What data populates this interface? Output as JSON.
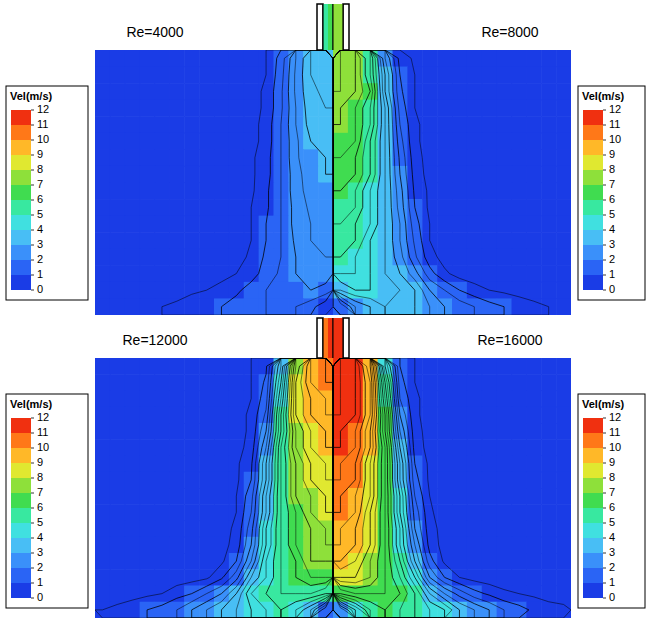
{
  "chart_data": [
    {
      "type": "heatmap",
      "title": "Re=4000",
      "colorbar": {
        "label": "Vel(m/s)",
        "range": [
          0,
          12
        ],
        "ticks": [
          0,
          1,
          2,
          3,
          4,
          5,
          6,
          7,
          8,
          9,
          10,
          11,
          12
        ]
      },
      "nozzle": [
        5,
        6
      ],
      "cells": [
        [
          0.1,
          0.1,
          0.1,
          0.1,
          0.1,
          0.1,
          0.1,
          0.1,
          0.1,
          0.2,
          0.3,
          0.5,
          1.2,
          2.5,
          3.5,
          3.8
        ],
        [
          0.1,
          0.1,
          0.1,
          0.1,
          0.1,
          0.1,
          0.1,
          0.1,
          0.1,
          0.2,
          0.3,
          0.5,
          1.3,
          2.6,
          3.5,
          3.8
        ],
        [
          0.1,
          0.1,
          0.1,
          0.1,
          0.1,
          0.1,
          0.1,
          0.1,
          0.1,
          0.2,
          0.3,
          0.6,
          1.4,
          2.6,
          3.4,
          3.6
        ],
        [
          0.1,
          0.1,
          0.1,
          0.1,
          0.1,
          0.1,
          0.1,
          0.1,
          0.1,
          0.2,
          0.3,
          0.6,
          1.4,
          2.5,
          3.3,
          3.5
        ],
        [
          0.1,
          0.1,
          0.1,
          0.1,
          0.1,
          0.1,
          0.1,
          0.1,
          0.1,
          0.2,
          0.3,
          0.7,
          1.5,
          2.5,
          3.2,
          3.3
        ],
        [
          0.1,
          0.1,
          0.1,
          0.1,
          0.1,
          0.1,
          0.1,
          0.1,
          0.1,
          0.2,
          0.3,
          0.7,
          1.5,
          2.4,
          3,
          3.2
        ],
        [
          0.1,
          0.1,
          0.1,
          0.1,
          0.1,
          0.1,
          0.1,
          0.1,
          0.1,
          0.2,
          0.4,
          0.8,
          1.5,
          2.4,
          2.9,
          3
        ],
        [
          0.1,
          0.1,
          0.1,
          0.1,
          0.1,
          0.1,
          0.1,
          0.1,
          0.1,
          0.2,
          0.4,
          0.8,
          1.5,
          2.3,
          2.8,
          3
        ],
        [
          0.1,
          0.1,
          0.1,
          0.1,
          0.1,
          0.1,
          0.1,
          0.1,
          0.1,
          0.2,
          0.4,
          0.9,
          1.5,
          2.3,
          2.7,
          2.9
        ],
        [
          0.1,
          0.1,
          0.1,
          0.1,
          0.1,
          0.1,
          0.1,
          0.1,
          0.1,
          0.2,
          0.5,
          0.9,
          1.5,
          2.2,
          2.6,
          2.8
        ],
        [
          0.1,
          0.1,
          0.1,
          0.1,
          0.1,
          0.1,
          0.1,
          0.1,
          0.1,
          0.2,
          0.5,
          1,
          1.5,
          2.2,
          2.5,
          2.7
        ],
        [
          0.1,
          0.1,
          0.1,
          0.1,
          0.1,
          0.1,
          0.1,
          0.1,
          0.1,
          0.3,
          0.5,
          1,
          1.5,
          2.1,
          2.5,
          2.6
        ],
        [
          0.1,
          0.1,
          0.1,
          0.1,
          0.1,
          0.1,
          0.1,
          0.1,
          0.2,
          0.3,
          0.6,
          1.1,
          1.5,
          2,
          2.4,
          2.5
        ],
        [
          0.1,
          0.1,
          0.1,
          0.1,
          0.1,
          0.1,
          0.1,
          0.2,
          0.3,
          0.5,
          0.8,
          1.2,
          1.6,
          2,
          2.2,
          2.3
        ],
        [
          0.2,
          0.2,
          0.2,
          0.2,
          0.3,
          0.3,
          0.4,
          0.5,
          0.7,
          0.9,
          1.2,
          1.5,
          1.7,
          1.9,
          2,
          1.8
        ],
        [
          0.2,
          0.3,
          0.3,
          0.4,
          0.5,
          0.6,
          0.8,
          0.9,
          1,
          1.2,
          1.4,
          1.5,
          1.6,
          1.5,
          1.2,
          0.6
        ]
      ]
    },
    {
      "type": "heatmap",
      "title": "Re=8000",
      "colorbar": {
        "label": "Vel(m/s)",
        "range": [
          0,
          12
        ],
        "ticks": [
          0,
          1,
          2,
          3,
          4,
          5,
          6,
          7,
          8,
          9,
          10,
          11,
          12
        ]
      },
      "nozzle": [
        7.5,
        7
      ],
      "cells": [
        [
          7.5,
          7,
          5.5,
          2.5,
          0.8,
          0.4,
          0.3,
          0.2,
          0.1,
          0.1,
          0.1,
          0.1,
          0.1,
          0.1,
          0.1,
          0.1
        ],
        [
          7.5,
          7,
          5.5,
          3,
          1,
          0.5,
          0.3,
          0.2,
          0.1,
          0.1,
          0.1,
          0.1,
          0.1,
          0.1,
          0.1,
          0.1
        ],
        [
          7.5,
          7,
          6,
          3,
          1.1,
          0.5,
          0.3,
          0.2,
          0.1,
          0.1,
          0.1,
          0.1,
          0.1,
          0.1,
          0.1,
          0.1
        ],
        [
          7,
          6.5,
          5.5,
          3.5,
          1.3,
          0.5,
          0.3,
          0.2,
          0.1,
          0.1,
          0.1,
          0.1,
          0.1,
          0.1,
          0.1,
          0.1
        ],
        [
          7,
          6.5,
          5.5,
          3.5,
          1.5,
          0.6,
          0.3,
          0.2,
          0.1,
          0.1,
          0.1,
          0.1,
          0.1,
          0.1,
          0.1,
          0.1
        ],
        [
          6.5,
          6.5,
          5,
          3.5,
          1.7,
          0.6,
          0.3,
          0.2,
          0.1,
          0.1,
          0.1,
          0.1,
          0.1,
          0.1,
          0.1,
          0.1
        ],
        [
          6.5,
          6,
          5,
          3.5,
          1.9,
          0.7,
          0.3,
          0.2,
          0.1,
          0.1,
          0.1,
          0.1,
          0.1,
          0.1,
          0.1,
          0.1
        ],
        [
          6,
          6,
          5,
          3.5,
          2,
          0.8,
          0.3,
          0.2,
          0.1,
          0.1,
          0.1,
          0.1,
          0.1,
          0.1,
          0.1,
          0.1
        ],
        [
          6,
          5.5,
          4.5,
          3.5,
          2.2,
          0.9,
          0.4,
          0.2,
          0.1,
          0.1,
          0.1,
          0.1,
          0.1,
          0.1,
          0.1,
          0.1
        ],
        [
          5.5,
          5.5,
          4.5,
          3.5,
          2.3,
          1,
          0.4,
          0.2,
          0.1,
          0.1,
          0.1,
          0.1,
          0.1,
          0.1,
          0.1,
          0.1
        ],
        [
          5.5,
          5,
          4.5,
          3.5,
          2.5,
          1.2,
          0.5,
          0.2,
          0.1,
          0.1,
          0.1,
          0.1,
          0.1,
          0.1,
          0.1,
          0.1
        ],
        [
          5,
          5,
          4,
          3.5,
          2.5,
          1.4,
          0.5,
          0.2,
          0.1,
          0.1,
          0.1,
          0.1,
          0.1,
          0.1,
          0.1,
          0.1
        ],
        [
          5,
          4.5,
          4,
          3.5,
          2.7,
          1.6,
          0.7,
          0.3,
          0.2,
          0.1,
          0.1,
          0.1,
          0.1,
          0.1,
          0.1,
          0.1
        ],
        [
          4.5,
          4.5,
          4,
          3.5,
          3,
          2.2,
          1.2,
          0.6,
          0.3,
          0.2,
          0.2,
          0.1,
          0.1,
          0.1,
          0.1,
          0.1
        ],
        [
          3.5,
          4,
          4,
          3.5,
          3.5,
          3,
          2,
          1.5,
          1,
          0.7,
          0.5,
          0.4,
          0.3,
          0.3,
          0.2,
          0.2
        ],
        [
          1,
          2.5,
          3,
          3.5,
          3,
          3,
          2.5,
          2,
          1.8,
          1.5,
          1.2,
          1,
          0.8,
          0.6,
          0.5,
          0.4
        ]
      ]
    },
    {
      "type": "heatmap",
      "title": "Re=12000",
      "colorbar": {
        "label": "Vel(m/s)",
        "range": [
          0,
          12
        ],
        "ticks": [
          0,
          1,
          2,
          3,
          4,
          5,
          6,
          7,
          8,
          9,
          10,
          11,
          12
        ]
      },
      "nozzle": [
        10,
        11.5
      ],
      "cells": [
        [
          0.1,
          0.1,
          0.1,
          0.1,
          0.1,
          0.1,
          0.1,
          0.1,
          0.2,
          0.3,
          0.5,
          0.9,
          3.5,
          7.5,
          9.5,
          10
        ],
        [
          0.1,
          0.1,
          0.1,
          0.1,
          0.1,
          0.1,
          0.1,
          0.1,
          0.2,
          0.3,
          0.5,
          1.1,
          4,
          8,
          9.5,
          10
        ],
        [
          0.1,
          0.1,
          0.1,
          0.1,
          0.1,
          0.1,
          0.1,
          0.1,
          0.2,
          0.3,
          0.5,
          1.3,
          4.5,
          8,
          9,
          9.5
        ],
        [
          0.1,
          0.1,
          0.1,
          0.1,
          0.1,
          0.1,
          0.1,
          0.1,
          0.2,
          0.3,
          0.6,
          1.6,
          5,
          8,
          9,
          9.5
        ],
        [
          0.1,
          0.1,
          0.1,
          0.1,
          0.1,
          0.1,
          0.1,
          0.1,
          0.2,
          0.3,
          0.6,
          2,
          5,
          7.5,
          8.5,
          9
        ],
        [
          0.1,
          0.1,
          0.1,
          0.1,
          0.1,
          0.1,
          0.1,
          0.1,
          0.2,
          0.3,
          0.7,
          2.5,
          5.5,
          7.5,
          8.5,
          9
        ],
        [
          0.1,
          0.1,
          0.1,
          0.1,
          0.1,
          0.1,
          0.1,
          0.1,
          0.2,
          0.4,
          0.9,
          3,
          5.5,
          7,
          8,
          8.5
        ],
        [
          0.1,
          0.1,
          0.1,
          0.1,
          0.1,
          0.1,
          0.1,
          0.1,
          0.2,
          0.4,
          1,
          3,
          5.5,
          7,
          8,
          8.5
        ],
        [
          0.1,
          0.1,
          0.1,
          0.1,
          0.1,
          0.1,
          0.1,
          0.1,
          0.2,
          0.5,
          1.3,
          3.5,
          5.5,
          7,
          7.5,
          8
        ],
        [
          0.1,
          0.1,
          0.1,
          0.1,
          0.1,
          0.1,
          0.1,
          0.1,
          0.2,
          0.5,
          1.5,
          3.5,
          5.5,
          6.5,
          7.5,
          8
        ],
        [
          0.1,
          0.1,
          0.1,
          0.1,
          0.1,
          0.1,
          0.1,
          0.1,
          0.3,
          0.6,
          1.8,
          4,
          5.5,
          6.5,
          7,
          7.5
        ],
        [
          0.1,
          0.1,
          0.1,
          0.1,
          0.1,
          0.1,
          0.1,
          0.2,
          0.3,
          0.7,
          2,
          4,
          5.5,
          6.5,
          7,
          7.5
        ],
        [
          0.1,
          0.1,
          0.1,
          0.1,
          0.1,
          0.1,
          0.2,
          0.2,
          0.4,
          1,
          2.5,
          4.5,
          5.5,
          6,
          7,
          7
        ],
        [
          0.1,
          0.1,
          0.1,
          0.1,
          0.2,
          0.2,
          0.3,
          0.4,
          0.9,
          1.8,
          3.5,
          4.5,
          5.5,
          6,
          6.5,
          6.5
        ],
        [
          0.2,
          0.3,
          0.3,
          0.4,
          0.5,
          0.8,
          1,
          1.5,
          2,
          3,
          4.5,
          5,
          5.5,
          5.5,
          5.5,
          5
        ],
        [
          0.5,
          0.6,
          0.8,
          1,
          1.2,
          1.5,
          2,
          2.5,
          3,
          3.5,
          4,
          4.5,
          5,
          4.5,
          3.5,
          1.5
        ]
      ]
    },
    {
      "type": "heatmap",
      "title": "Re=16000",
      "colorbar": {
        "label": "Vel(m/s)",
        "range": [
          0,
          12
        ],
        "ticks": [
          0,
          1,
          2,
          3,
          4,
          5,
          6,
          7,
          8,
          9,
          10,
          11,
          12
        ]
      },
      "nozzle": [
        12,
        11.5
      ],
      "cells": [
        [
          11.5,
          11,
          9,
          4,
          1,
          0.5,
          0.3,
          0.2,
          0.1,
          0.1,
          0.1,
          0.1,
          0.1,
          0.1,
          0.1,
          0.1
        ],
        [
          11.5,
          11,
          9.5,
          5,
          1.2,
          0.5,
          0.3,
          0.2,
          0.1,
          0.1,
          0.1,
          0.1,
          0.1,
          0.1,
          0.1,
          0.1
        ],
        [
          11.5,
          11,
          9.5,
          5.5,
          1.5,
          0.6,
          0.3,
          0.2,
          0.1,
          0.1,
          0.1,
          0.1,
          0.1,
          0.1,
          0.1,
          0.1
        ],
        [
          11.5,
          11,
          9.5,
          6,
          2,
          0.6,
          0.3,
          0.2,
          0.1,
          0.1,
          0.1,
          0.1,
          0.1,
          0.1,
          0.1,
          0.1
        ],
        [
          11,
          10.5,
          9,
          6,
          2.5,
          0.7,
          0.3,
          0.2,
          0.1,
          0.1,
          0.1,
          0.1,
          0.1,
          0.1,
          0.1,
          0.1
        ],
        [
          11,
          10.5,
          9,
          6.5,
          3,
          0.8,
          0.3,
          0.2,
          0.1,
          0.1,
          0.1,
          0.1,
          0.1,
          0.1,
          0.1,
          0.1
        ],
        [
          10.5,
          10,
          8.5,
          6.5,
          3.5,
          1,
          0.4,
          0.2,
          0.1,
          0.1,
          0.1,
          0.1,
          0.1,
          0.1,
          0.1,
          0.1
        ],
        [
          10.5,
          10,
          8.5,
          6.5,
          3.5,
          1.2,
          0.4,
          0.2,
          0.1,
          0.1,
          0.1,
          0.1,
          0.1,
          0.1,
          0.1,
          0.1
        ],
        [
          10,
          9.5,
          8.5,
          6.5,
          4,
          1.5,
          0.5,
          0.2,
          0.1,
          0.1,
          0.1,
          0.1,
          0.1,
          0.1,
          0.1,
          0.1
        ],
        [
          10,
          9.5,
          8,
          6.5,
          4,
          1.8,
          0.6,
          0.2,
          0.1,
          0.1,
          0.1,
          0.1,
          0.1,
          0.1,
          0.1,
          0.1
        ],
        [
          9.5,
          9,
          8,
          6.5,
          4.5,
          2,
          0.7,
          0.3,
          0.1,
          0.1,
          0.1,
          0.1,
          0.1,
          0.1,
          0.1,
          0.1
        ],
        [
          9.5,
          9,
          8,
          6.5,
          4.5,
          2.5,
          0.8,
          0.3,
          0.2,
          0.1,
          0.1,
          0.1,
          0.1,
          0.1,
          0.1,
          0.1
        ],
        [
          9,
          8.5,
          7.5,
          6.5,
          5,
          3,
          1.2,
          0.4,
          0.2,
          0.2,
          0.1,
          0.1,
          0.1,
          0.1,
          0.1,
          0.1
        ],
        [
          8,
          8,
          7.5,
          6.5,
          5.5,
          4,
          2,
          1,
          0.5,
          0.3,
          0.2,
          0.2,
          0.1,
          0.1,
          0.1,
          0.1
        ],
        [
          6,
          6.5,
          6.5,
          6.5,
          6,
          5,
          3.5,
          2.5,
          1.8,
          1.2,
          0.9,
          0.6,
          0.5,
          0.4,
          0.3,
          0.3
        ],
        [
          2,
          4,
          5.5,
          6,
          5.5,
          5,
          4.5,
          4,
          3,
          2.5,
          2,
          1.5,
          1.2,
          0.9,
          0.7,
          0.6
        ]
      ]
    }
  ]
}
